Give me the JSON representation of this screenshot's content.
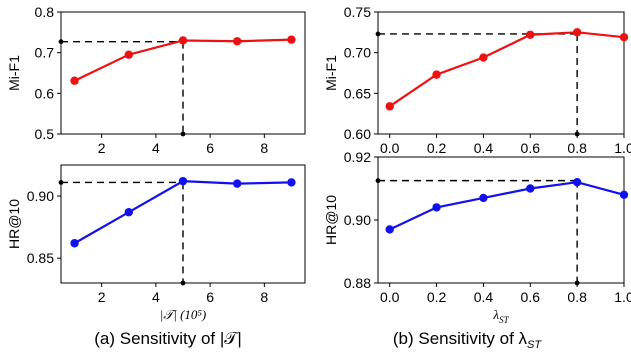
{
  "captions": {
    "left": "(a) Sensitivity of |𝒯|",
    "right": "(b) Sensitivity of λ",
    "right_sub": "ST"
  },
  "chart_data": [
    {
      "type": "line",
      "panel": "top-left",
      "x": [
        1,
        3,
        5,
        7,
        9
      ],
      "series": [
        {
          "values": [
            0.631,
            0.695,
            0.73,
            0.728,
            0.732
          ],
          "color": "#ee1111"
        }
      ],
      "ylabel": "Mi-F1",
      "xlim": [
        0.5,
        9.5
      ],
      "ylim": [
        0.5,
        0.8
      ],
      "xticks": [
        2,
        4,
        6,
        8
      ],
      "yticks": [
        0.5,
        0.6,
        0.7,
        0.8
      ],
      "ytick_labels": [
        "0.5",
        "0.6",
        "0.7",
        "0.8"
      ],
      "xtick_labels": [
        "2",
        "4",
        "6",
        "8"
      ],
      "highlight": {
        "x": 5,
        "y": 0.727
      },
      "marker_color": "#ee1111"
    },
    {
      "type": "line",
      "panel": "top-right",
      "x": [
        0.0,
        0.2,
        0.4,
        0.6,
        0.8,
        1.0
      ],
      "series": [
        {
          "values": [
            0.634,
            0.673,
            0.694,
            0.722,
            0.725,
            0.719
          ],
          "color": "#ee1111"
        }
      ],
      "ylabel": "Mi-F1",
      "xlim": [
        -0.05,
        1.0
      ],
      "ylim": [
        0.6,
        0.75
      ],
      "xticks": [
        0.0,
        0.2,
        0.4,
        0.6,
        0.8,
        1.0
      ],
      "yticks": [
        0.6,
        0.65,
        0.7,
        0.75
      ],
      "ytick_labels": [
        "0.60",
        "0.65",
        "0.70",
        "0.75"
      ],
      "xtick_labels": [
        "0.0",
        "0.2",
        "0.4",
        "0.6",
        "0.8",
        "1.0"
      ],
      "highlight": {
        "x": 0.8,
        "y": 0.723
      },
      "marker_color": "#ee1111"
    },
    {
      "type": "line",
      "panel": "bottom-left",
      "x": [
        1,
        3,
        5,
        7,
        9
      ],
      "series": [
        {
          "values": [
            0.862,
            0.887,
            0.912,
            0.91,
            0.911
          ],
          "color": "#1111ee"
        }
      ],
      "ylabel": "HR@10",
      "xlabel": "|𝒯| (10⁵)",
      "xlim": [
        0.5,
        9.5
      ],
      "ylim": [
        0.83,
        0.925
      ],
      "xticks": [
        2,
        4,
        6,
        8
      ],
      "yticks": [
        0.85,
        0.9
      ],
      "ytick_labels": [
        "0.85",
        "0.90"
      ],
      "xtick_labels": [
        "2",
        "4",
        "6",
        "8"
      ],
      "highlight": {
        "x": 5,
        "y": 0.911
      },
      "marker_color": "#1111ee"
    },
    {
      "type": "line",
      "panel": "bottom-right",
      "x": [
        0.0,
        0.2,
        0.4,
        0.6,
        0.8,
        1.0
      ],
      "series": [
        {
          "values": [
            0.897,
            0.904,
            0.907,
            0.91,
            0.912,
            0.908
          ],
          "color": "#1111ee"
        }
      ],
      "ylabel": "HR@10",
      "xlabel": "λ",
      "xlabel_sub": "ST",
      "xlim": [
        -0.05,
        1.0
      ],
      "ylim": [
        0.88,
        0.92
      ],
      "xticks": [
        0.0,
        0.2,
        0.4,
        0.6,
        0.8,
        1.0
      ],
      "yticks": [
        0.88,
        0.9,
        0.92
      ],
      "ytick_labels": [
        "0.88",
        "0.90",
        "0.92"
      ],
      "xtick_labels": [
        "0.0",
        "0.2",
        "0.4",
        "0.6",
        "0.8",
        "1.0"
      ],
      "highlight": {
        "x": 0.8,
        "y": 0.9125
      },
      "marker_color": "#1111ee"
    }
  ]
}
